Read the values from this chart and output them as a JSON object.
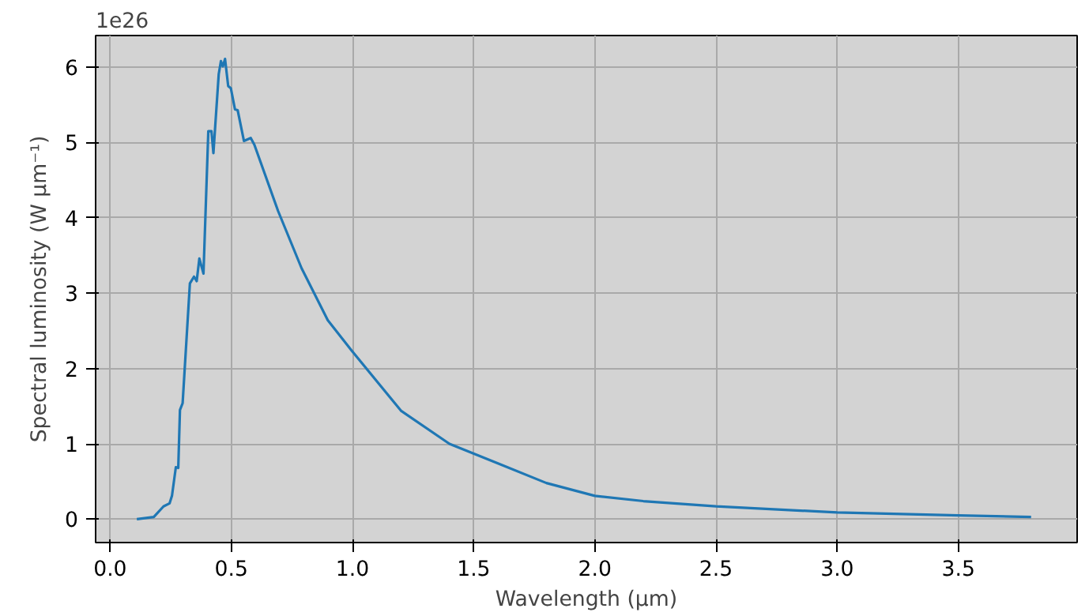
{
  "chart_data": {
    "type": "line",
    "xlabel": "Wavelength (μm)",
    "ylabel": "Spectral luminosity (W μm⁻¹)",
    "annotations": [
      "1e26"
    ],
    "x": [
      0.11,
      0.18,
      0.22,
      0.245,
      0.255,
      0.271,
      0.281,
      0.288,
      0.299,
      0.329,
      0.346,
      0.357,
      0.368,
      0.385,
      0.405,
      0.418,
      0.426,
      0.448,
      0.457,
      0.465,
      0.474,
      0.487,
      0.498,
      0.515,
      0.526,
      0.552,
      0.58,
      0.595,
      0.693,
      0.79,
      0.898,
      0.996,
      1.2,
      1.4,
      1.6,
      1.8,
      2.0,
      2.2,
      2.5,
      3.0,
      3.5,
      3.8
    ],
    "series": [
      {
        "color": "#1f77b4",
        "values": [
          0.0,
          0.03,
          0.17,
          0.21,
          0.31,
          0.69,
          0.68,
          1.45,
          1.54,
          3.13,
          3.22,
          3.16,
          3.46,
          3.26,
          5.15,
          5.15,
          4.86,
          5.91,
          6.08,
          6.01,
          6.11,
          5.75,
          5.72,
          5.44,
          5.43,
          5.02,
          5.06,
          4.97,
          4.09,
          3.33,
          2.64,
          2.24,
          1.44,
          1.0,
          0.74,
          0.48,
          0.31,
          0.24,
          0.17,
          0.09,
          0.05,
          0.03
        ]
      }
    ],
    "xlim": [
      -0.06,
      3.99
    ],
    "ylim": [
      -0.31,
      6.42
    ],
    "xticks": [
      {
        "value": 0,
        "label": "0.0"
      },
      0.5,
      {
        "value": 1,
        "label": "1.0"
      },
      1.5,
      {
        "value": 2,
        "label": "2.0"
      },
      2.5,
      {
        "value": 3,
        "label": "3.0"
      },
      3.5
    ],
    "yticks": [
      0,
      1,
      2,
      3,
      4,
      5,
      6
    ],
    "grid": true,
    "marker": "none",
    "line_style": "solid"
  }
}
